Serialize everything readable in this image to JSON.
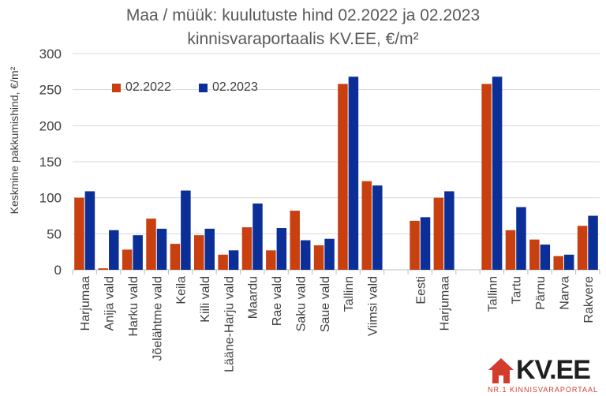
{
  "chart_data": {
    "type": "bar",
    "title_line1": "Maa / müük: kuulutuste hind 02.2022 ja 02.2023",
    "title_line2": "kinnisvaraportaalis KV.EE, €/m²",
    "ylabel": "Keskmine pakkumishind, €/m²",
    "ylim": [
      0,
      300
    ],
    "yticks": [
      "0",
      "50",
      "100",
      "150",
      "200",
      "250",
      "300"
    ],
    "grid": true,
    "legend_placement": "top-left",
    "categories": [
      "Harjumaa",
      "Anija vald",
      "Harku vald",
      "Jõelähtme vald",
      "Keila",
      "Kiili vald",
      "Lääne-Harju vald",
      "Maardu",
      "Rae vald",
      "Saku vald",
      "Saue vald",
      "Tallinn",
      "Viimsi vald",
      "",
      "Eesti",
      "Harjumaa",
      "",
      "Tallinn",
      "Tartu",
      "Pärnu",
      "Narva",
      "Rakvere"
    ],
    "series": [
      {
        "name": "02.2022",
        "color": "#c84010",
        "values": [
          100,
          2,
          28,
          71,
          36,
          48,
          21,
          59,
          27,
          82,
          34,
          258,
          123,
          null,
          68,
          100,
          null,
          258,
          55,
          42,
          19,
          61
        ]
      },
      {
        "name": "02.2023",
        "color": "#0c2f97",
        "values": [
          109,
          55,
          48,
          57,
          110,
          57,
          27,
          92,
          58,
          41,
          43,
          268,
          117,
          null,
          73,
          109,
          null,
          268,
          87,
          35,
          21,
          75
        ]
      }
    ]
  },
  "logo": {
    "word": "KV.EE",
    "tagline": "NR.1 KINNISVARAPORTAAL",
    "accent_color": "#d33b2c",
    "icon": "house-icon"
  }
}
